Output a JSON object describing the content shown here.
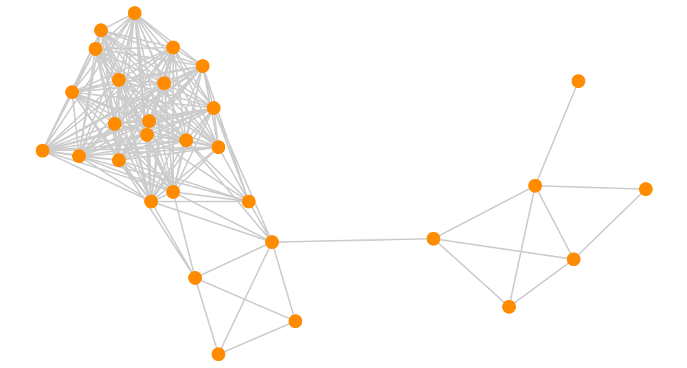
{
  "graph": {
    "node_color": "#ff8c00",
    "edge_color": "#cccccc",
    "node_count": 30,
    "dense_cluster": [
      0,
      1,
      2,
      3,
      4,
      5,
      6,
      7,
      8,
      9,
      10,
      11,
      12,
      13,
      14,
      15,
      16,
      17,
      18
    ],
    "edges": [
      [
        8,
        19
      ],
      [
        4,
        19
      ],
      [
        12,
        19
      ],
      [
        11,
        19
      ],
      [
        16,
        19
      ],
      [
        15,
        19
      ],
      [
        17,
        19
      ],
      [
        18,
        19
      ],
      [
        13,
        19
      ],
      [
        8,
        20
      ],
      [
        12,
        20
      ],
      [
        18,
        20
      ],
      [
        19,
        20
      ],
      [
        17,
        20
      ],
      [
        18,
        21
      ],
      [
        17,
        21
      ],
      [
        16,
        21
      ],
      [
        20,
        21
      ],
      [
        21,
        22
      ],
      [
        21,
        23
      ],
      [
        20,
        22
      ],
      [
        20,
        23
      ],
      [
        22,
        23
      ],
      [
        20,
        24
      ],
      [
        24,
        25
      ],
      [
        24,
        28
      ],
      [
        24,
        29
      ],
      [
        25,
        26
      ],
      [
        25,
        27
      ],
      [
        25,
        28
      ],
      [
        25,
        29
      ],
      [
        27,
        28
      ],
      [
        28,
        29
      ]
    ]
  }
}
